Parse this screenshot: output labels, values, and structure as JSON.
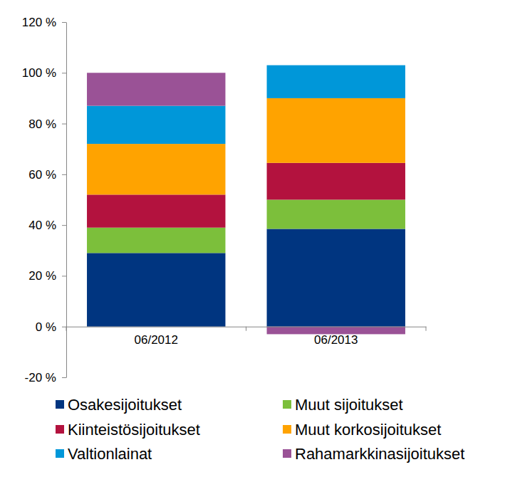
{
  "chart_data": {
    "type": "bar",
    "stacked": true,
    "grid": false,
    "legend": "bottom",
    "categories": [
      "06/2012",
      "06/2013"
    ],
    "ylim": [
      -20,
      120
    ],
    "yticks": [
      {
        "value": -20,
        "label": "-20 %"
      },
      {
        "value": 0,
        "label": "0 %"
      },
      {
        "value": 20,
        "label": "20 %"
      },
      {
        "value": 40,
        "label": "40 %"
      },
      {
        "value": 60,
        "label": "60 %"
      },
      {
        "value": 80,
        "label": "80 %"
      },
      {
        "value": 100,
        "label": "100 %"
      },
      {
        "value": 120,
        "label": "120 %"
      }
    ],
    "series": [
      {
        "name": "Osakesijoitukset",
        "color": "#003580",
        "values": [
          29,
          38.5
        ]
      },
      {
        "name": "Muut sijoitukset",
        "color": "#7cbf3b",
        "values": [
          10,
          11.5
        ]
      },
      {
        "name": "Kiinteistösijoitukset",
        "color": "#b3123e",
        "values": [
          13,
          14.5
        ]
      },
      {
        "name": "Muut korkosijoitukset",
        "color": "#ffa300",
        "values": [
          20,
          25.5
        ]
      },
      {
        "name": "Valtionlainat",
        "color": "#0097d9",
        "values": [
          15,
          13
        ]
      },
      {
        "name": "Rahamarkkinasijoitukset",
        "color": "#9a5296",
        "values": [
          13,
          -3
        ]
      }
    ]
  }
}
